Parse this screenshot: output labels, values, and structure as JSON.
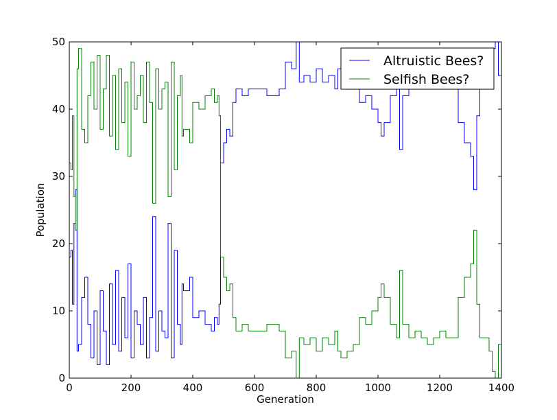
{
  "chart_data": {
    "type": "line",
    "title": "",
    "xlabel": "Generation",
    "ylabel": "Population",
    "xlim": [
      0,
      1400
    ],
    "ylim": [
      0,
      50
    ],
    "xticks": [
      0,
      200,
      400,
      600,
      800,
      1000,
      1200,
      1400
    ],
    "yticks": [
      0,
      10,
      20,
      30,
      40,
      50
    ],
    "grid": false,
    "legend_position": "top-right",
    "series": [
      {
        "name": "Altruistic Bees?",
        "color": "#0000ff",
        "x": [
          0,
          5,
          10,
          15,
          20,
          25,
          30,
          40,
          50,
          60,
          70,
          80,
          90,
          100,
          110,
          120,
          130,
          140,
          150,
          160,
          170,
          180,
          190,
          200,
          210,
          220,
          230,
          240,
          250,
          260,
          270,
          280,
          290,
          300,
          310,
          320,
          330,
          340,
          350,
          360,
          365,
          370,
          380,
          390,
          400,
          420,
          440,
          460,
          470,
          480,
          485,
          490,
          500,
          510,
          520,
          530,
          540,
          560,
          580,
          600,
          620,
          640,
          660,
          680,
          700,
          720,
          735,
          745,
          760,
          780,
          800,
          820,
          840,
          860,
          870,
          880,
          900,
          920,
          940,
          960,
          980,
          1000,
          1010,
          1020,
          1040,
          1060,
          1070,
          1080,
          1100,
          1120,
          1140,
          1160,
          1180,
          1200,
          1220,
          1240,
          1260,
          1280,
          1300,
          1310,
          1320,
          1330,
          1340,
          1360,
          1370,
          1380,
          1390,
          1400
        ],
        "values": [
          18,
          19,
          11,
          23,
          28,
          4,
          5,
          12,
          15,
          8,
          3,
          10,
          2,
          13,
          7,
          2,
          14,
          5,
          16,
          4,
          12,
          6,
          17,
          3,
          10,
          8,
          5,
          12,
          3,
          9,
          24,
          4,
          10,
          7,
          6,
          23,
          3,
          19,
          8,
          5,
          14,
          13,
          13,
          15,
          9,
          10,
          8,
          7,
          9,
          8,
          11,
          32,
          35,
          37,
          36,
          41,
          43,
          42,
          43,
          43,
          43,
          42,
          42,
          43,
          47,
          46,
          50,
          44,
          45,
          44,
          46,
          44,
          45,
          43,
          46,
          47,
          46,
          45,
          41,
          42,
          40,
          38,
          36,
          38,
          42,
          44,
          34,
          42,
          44,
          43,
          44,
          45,
          44,
          43,
          44,
          44,
          38,
          35,
          33,
          28,
          39,
          44,
          44,
          46,
          49,
          50,
          45,
          41
        ]
      },
      {
        "name": "Selfish Bees?",
        "color": "#008000",
        "x": [
          0,
          5,
          10,
          15,
          20,
          25,
          30,
          40,
          50,
          60,
          70,
          80,
          90,
          100,
          110,
          120,
          130,
          140,
          150,
          160,
          170,
          180,
          190,
          200,
          210,
          220,
          230,
          240,
          250,
          260,
          270,
          280,
          290,
          300,
          310,
          320,
          330,
          340,
          350,
          360,
          365,
          370,
          380,
          390,
          400,
          420,
          440,
          460,
          470,
          480,
          485,
          490,
          500,
          510,
          520,
          530,
          540,
          560,
          580,
          600,
          620,
          640,
          660,
          680,
          700,
          720,
          735,
          745,
          760,
          780,
          800,
          820,
          840,
          860,
          870,
          880,
          900,
          920,
          940,
          960,
          980,
          1000,
          1010,
          1020,
          1040,
          1060,
          1070,
          1080,
          1100,
          1120,
          1140,
          1160,
          1180,
          1200,
          1220,
          1240,
          1260,
          1280,
          1300,
          1310,
          1320,
          1330,
          1340,
          1360,
          1370,
          1380,
          1390,
          1400
        ],
        "values": [
          32,
          31,
          39,
          27,
          22,
          46,
          49,
          37,
          35,
          42,
          47,
          40,
          48,
          37,
          43,
          48,
          36,
          45,
          34,
          46,
          38,
          44,
          33,
          47,
          40,
          42,
          45,
          38,
          47,
          41,
          26,
          46,
          40,
          43,
          44,
          27,
          47,
          31,
          42,
          45,
          36,
          37,
          37,
          35,
          41,
          40,
          42,
          43,
          41,
          42,
          39,
          18,
          15,
          13,
          14,
          9,
          7,
          8,
          7,
          7,
          7,
          8,
          8,
          7,
          3,
          4,
          0,
          6,
          5,
          6,
          4,
          6,
          5,
          7,
          4,
          3,
          4,
          5,
          9,
          8,
          10,
          12,
          14,
          12,
          8,
          6,
          16,
          8,
          6,
          7,
          6,
          5,
          6,
          7,
          6,
          6,
          12,
          15,
          17,
          22,
          11,
          6,
          6,
          4,
          1,
          0,
          5,
          9
        ]
      }
    ]
  }
}
